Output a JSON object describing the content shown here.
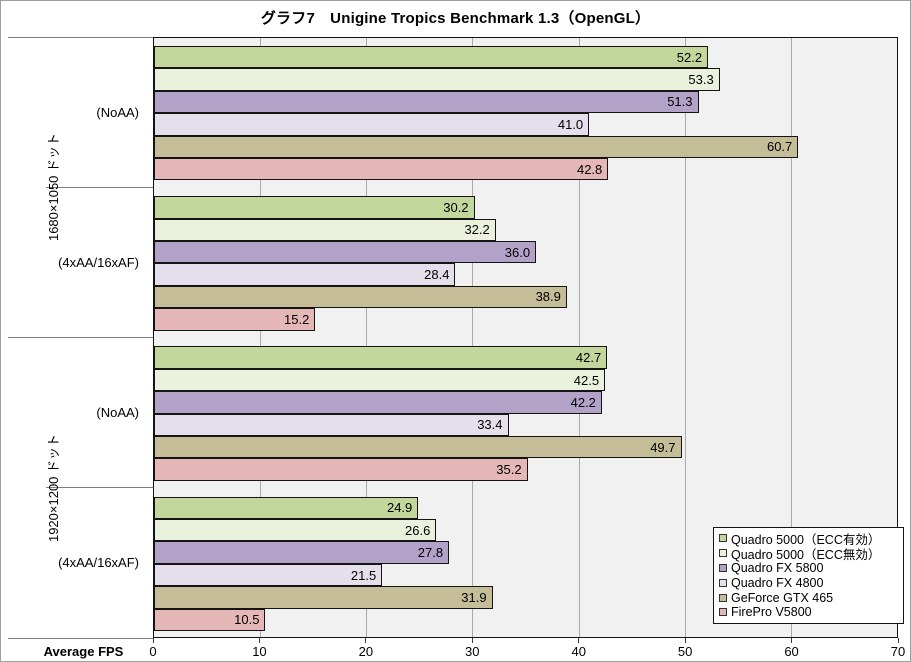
{
  "chart_data": {
    "type": "bar",
    "orientation": "horizontal",
    "title": "グラフ7　Unigine Tropics Benchmark 1.3（OpenGL）",
    "xlabel": "Average FPS",
    "xlim": [
      0,
      70
    ],
    "xticks": [
      0,
      10,
      20,
      30,
      40,
      50,
      60,
      70
    ],
    "grid": true,
    "plot_bg": "#f1f1f1",
    "gridline_color": "#a9a9a9",
    "bar_border_color": "#141414",
    "legend_position": "bottom-right",
    "legend": [
      {
        "label": "Quadro 5000（ECC有効）",
        "color": "#C3D69B"
      },
      {
        "label": "Quadro 5000（ECC無効）",
        "color": "#EAF1DD"
      },
      {
        "label": "Quadro FX 5800",
        "color": "#B3A2C7"
      },
      {
        "label": "Quadro FX 4800",
        "color": "#E5DFEC"
      },
      {
        "label": "GeForce GTX 465",
        "color": "#C4BD97"
      },
      {
        "label": "FirePro V5800",
        "color": "#E5B8B7"
      }
    ],
    "resolutions": [
      "1680×1050 ドット",
      "1920×1200 ドット"
    ],
    "groups": [
      {
        "resolution_index": 0,
        "mode": "(NoAA)",
        "values": [
          52.2,
          53.3,
          51.3,
          41.0,
          60.7,
          42.8
        ]
      },
      {
        "resolution_index": 0,
        "mode": "(4xAA/16xAF)",
        "values": [
          30.2,
          32.2,
          36.0,
          28.4,
          38.9,
          15.2
        ]
      },
      {
        "resolution_index": 1,
        "mode": "(NoAA)",
        "values": [
          42.7,
          42.5,
          42.2,
          33.4,
          49.7,
          35.2
        ]
      },
      {
        "resolution_index": 1,
        "mode": "(4xAA/16xAF)",
        "values": [
          24.9,
          26.6,
          27.8,
          21.5,
          31.9,
          10.5
        ]
      }
    ],
    "value_label_decimals": 1
  }
}
